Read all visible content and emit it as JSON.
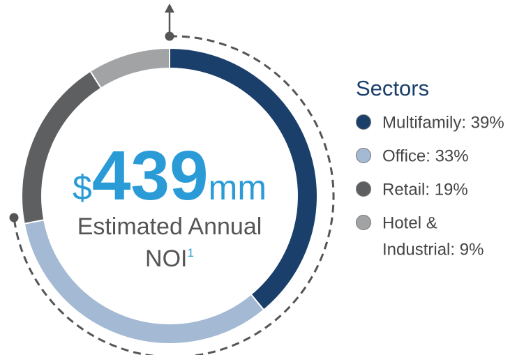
{
  "chart_data": {
    "type": "donut",
    "center": {
      "prefix": "$",
      "value": 439,
      "suffix": "mm",
      "label": "Estimated Annual NOI",
      "footnote": "1"
    },
    "legend_title": "Sectors",
    "categories": [
      "Multifamily: 39%",
      "Office: 33%",
      "Retail: 19%",
      "Hotel & Industrial: 9%"
    ],
    "values": [
      39,
      33,
      19,
      9
    ],
    "colors": [
      "#1b3f6b",
      "#a3b9d4",
      "#5e5f61",
      "#a2a3a5"
    ],
    "legend_position": "right"
  }
}
